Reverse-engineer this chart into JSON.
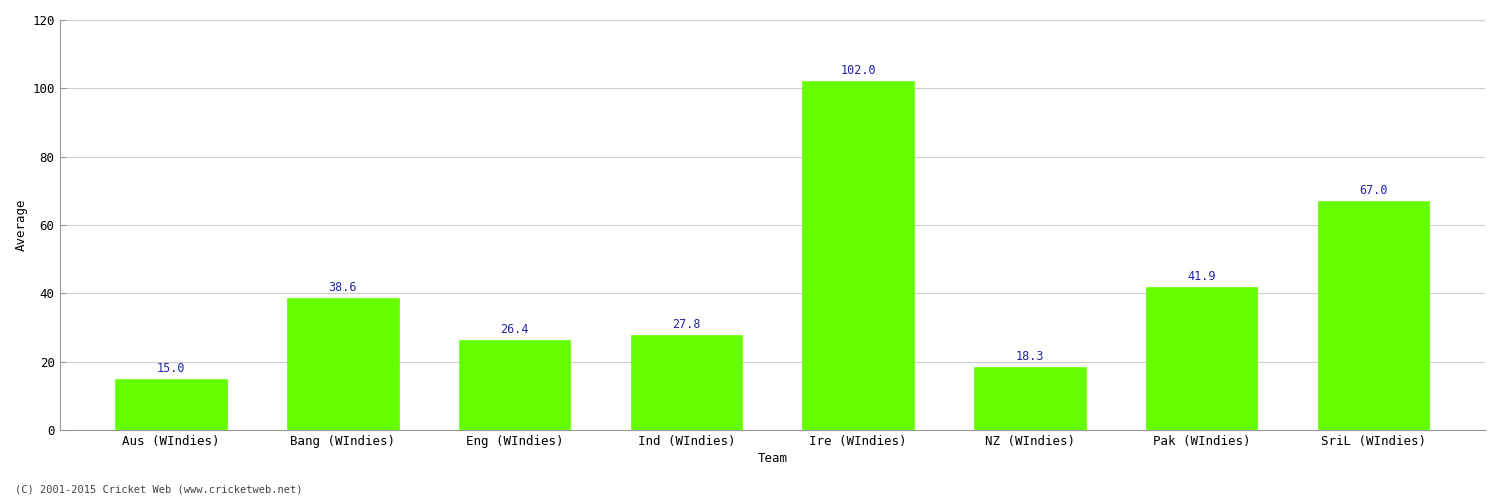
{
  "categories": [
    "Aus (WIndies)",
    "Bang (WIndies)",
    "Eng (WIndies)",
    "Ind (WIndies)",
    "Ire (WIndies)",
    "NZ (WIndies)",
    "Pak (WIndies)",
    "SriL (WIndies)"
  ],
  "values": [
    15.0,
    38.6,
    26.4,
    27.8,
    102.0,
    18.3,
    41.9,
    67.0
  ],
  "bar_color": "#66ff00",
  "bar_edge_color": "#66ff00",
  "label_color": "#2222aa",
  "xlabel": "Team",
  "ylabel": "Average",
  "ylim": [
    0,
    120
  ],
  "yticks": [
    0,
    20,
    40,
    60,
    80,
    100,
    120
  ],
  "grid_color": "#cccccc",
  "background_color": "#ffffff",
  "plot_bg_color": "#ffffff",
  "label_fontsize": 8.5,
  "axis_fontsize": 9,
  "footer_text": "(C) 2001-2015 Cricket Web (www.cricketweb.net)"
}
